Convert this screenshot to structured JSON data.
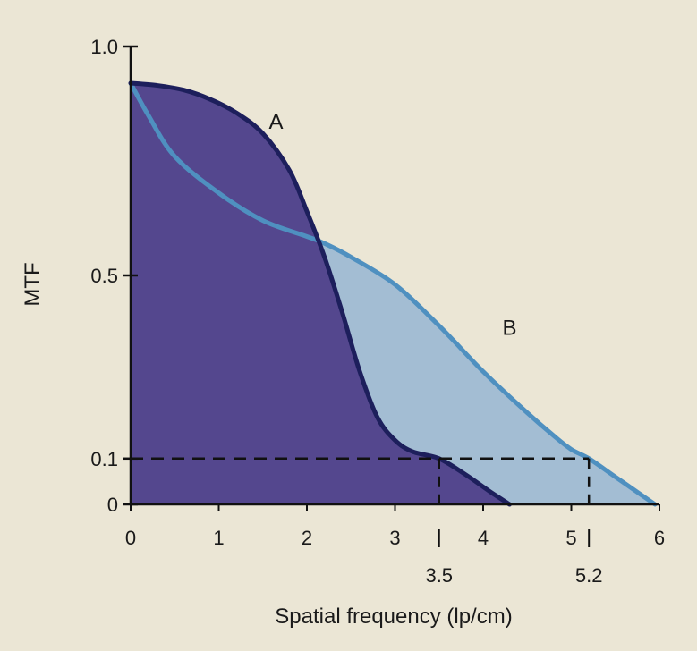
{
  "chart_data": {
    "type": "area",
    "xlabel": "Spatial frequency (lp/cm)",
    "ylabel": "MTF",
    "xlim": [
      0,
      6
    ],
    "ylim": [
      0,
      1.0
    ],
    "x_ticks": [
      "0",
      "1",
      "2",
      "3",
      "4",
      "5",
      "6"
    ],
    "y_ticks": [
      "0",
      "0.1",
      "0.5",
      "1.0"
    ],
    "reference_line": {
      "y": 0.1,
      "style": "dashed"
    },
    "reference_marks": [
      {
        "x": 3.5,
        "label": "3.5"
      },
      {
        "x": 5.2,
        "label": "5.2"
      }
    ],
    "series": [
      {
        "name": "A",
        "color": "#1d1f5c",
        "fill": "#54478e",
        "x": [
          0,
          0.3,
          0.6,
          0.9,
          1.2,
          1.5,
          1.8,
          2.0,
          2.2,
          2.4,
          2.6,
          2.8,
          3.0,
          3.2,
          3.5,
          3.8,
          4.1,
          4.3
        ],
        "y": [
          0.92,
          0.915,
          0.905,
          0.885,
          0.855,
          0.81,
          0.73,
          0.64,
          0.54,
          0.42,
          0.29,
          0.19,
          0.14,
          0.115,
          0.1,
          0.065,
          0.025,
          0.0
        ]
      },
      {
        "name": "B",
        "color": "#4f90c0",
        "fill": "#a3bdd3",
        "x": [
          0,
          0.2,
          0.5,
          1.0,
          1.5,
          2.0,
          2.2,
          2.5,
          3.0,
          3.5,
          4.0,
          4.5,
          4.8,
          5.0,
          5.2,
          5.5,
          5.8,
          5.95
        ],
        "y": [
          0.92,
          0.85,
          0.76,
          0.68,
          0.62,
          0.585,
          0.57,
          0.54,
          0.48,
          0.39,
          0.29,
          0.2,
          0.15,
          0.12,
          0.1,
          0.06,
          0.02,
          0.0
        ]
      }
    ]
  }
}
